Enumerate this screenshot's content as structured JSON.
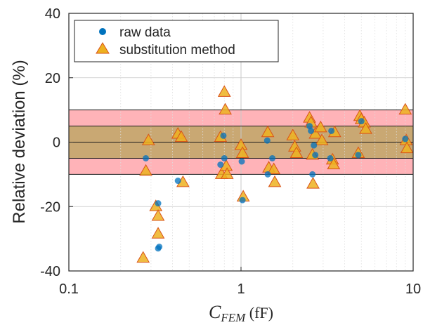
{
  "chart_data": {
    "type": "scatter",
    "title": "",
    "xlabel": {
      "main": "C",
      "sub": "FEM",
      "unit": " (fF)"
    },
    "ylabel": "Relative deviation (%)",
    "xscale": "log",
    "xlim": [
      0.1,
      10
    ],
    "ylim": [
      -40,
      40
    ],
    "xticks": [
      {
        "value": 0.1,
        "label": "0.1"
      },
      {
        "value": 1,
        "label": "1"
      },
      {
        "value": 10,
        "label": "10"
      }
    ],
    "yticks": [
      {
        "value": -40,
        "label": "-40"
      },
      {
        "value": -20,
        "label": "-20"
      },
      {
        "value": 0,
        "label": "0"
      },
      {
        "value": 20,
        "label": "20"
      },
      {
        "value": 40,
        "label": "40"
      }
    ],
    "grid": true,
    "legend_position": "top-left",
    "bands": [
      {
        "range": [
          -10,
          10
        ],
        "color": "#ffb3b8"
      },
      {
        "range": [
          -5,
          5
        ],
        "color": "#c9a873"
      }
    ],
    "reference_lines": [
      -10,
      -5,
      0,
      5,
      10
    ],
    "series": [
      {
        "name": "raw data",
        "marker": "circle",
        "color": "#0072bd",
        "points": [
          [
            0.28,
            -5
          ],
          [
            0.43,
            -12
          ],
          [
            0.76,
            -7
          ],
          [
            0.79,
            2
          ],
          [
            0.8,
            -5
          ],
          [
            1.01,
            -6
          ],
          [
            1.02,
            -18
          ],
          [
            1.42,
            0.5
          ],
          [
            1.43,
            -10
          ],
          [
            1.52,
            -5
          ],
          [
            0.33,
            -19
          ],
          [
            0.33,
            -33
          ],
          [
            0.335,
            -32.5
          ],
          [
            2.5,
            5
          ],
          [
            2.55,
            3.5
          ],
          [
            2.6,
            -10
          ],
          [
            2.65,
            -1
          ],
          [
            2.7,
            -4
          ],
          [
            3.3,
            -5
          ],
          [
            3.35,
            3.5
          ],
          [
            4.8,
            -4
          ],
          [
            5.0,
            6.5
          ],
          [
            9.0,
            1
          ]
        ]
      },
      {
        "name": "substitution method",
        "marker": "triangle",
        "color": "#edb120",
        "points": [
          [
            0.27,
            -36
          ],
          [
            0.28,
            -9
          ],
          [
            0.29,
            0.5
          ],
          [
            0.32,
            -20
          ],
          [
            0.33,
            -23
          ],
          [
            0.33,
            -28.5
          ],
          [
            0.43,
            2.5
          ],
          [
            0.45,
            1.5
          ],
          [
            0.46,
            -12.5
          ],
          [
            0.76,
            1.5
          ],
          [
            0.77,
            -10
          ],
          [
            0.8,
            15.5
          ],
          [
            0.81,
            10
          ],
          [
            0.82,
            -7.5
          ],
          [
            0.83,
            -10
          ],
          [
            1.0,
            -1
          ],
          [
            1.02,
            -3.5
          ],
          [
            1.03,
            -17
          ],
          [
            1.43,
            3
          ],
          [
            1.45,
            -8
          ],
          [
            1.55,
            -8.5
          ],
          [
            1.57,
            -12.5
          ],
          [
            2.0,
            2
          ],
          [
            2.05,
            -1.5
          ],
          [
            2.1,
            -3.5
          ],
          [
            2.5,
            7.5
          ],
          [
            2.55,
            6
          ],
          [
            2.6,
            -4
          ],
          [
            2.62,
            -13
          ],
          [
            2.7,
            2.5
          ],
          [
            2.9,
            4.5
          ],
          [
            2.95,
            0.5
          ],
          [
            3.4,
            -5.5
          ],
          [
            3.45,
            -7
          ],
          [
            3.5,
            3
          ],
          [
            4.8,
            -3.5
          ],
          [
            4.9,
            8
          ],
          [
            5.0,
            7
          ],
          [
            5.2,
            6
          ],
          [
            5.3,
            4
          ],
          [
            9.0,
            10
          ],
          [
            9.1,
            0.5
          ],
          [
            9.2,
            -2
          ]
        ]
      }
    ]
  }
}
